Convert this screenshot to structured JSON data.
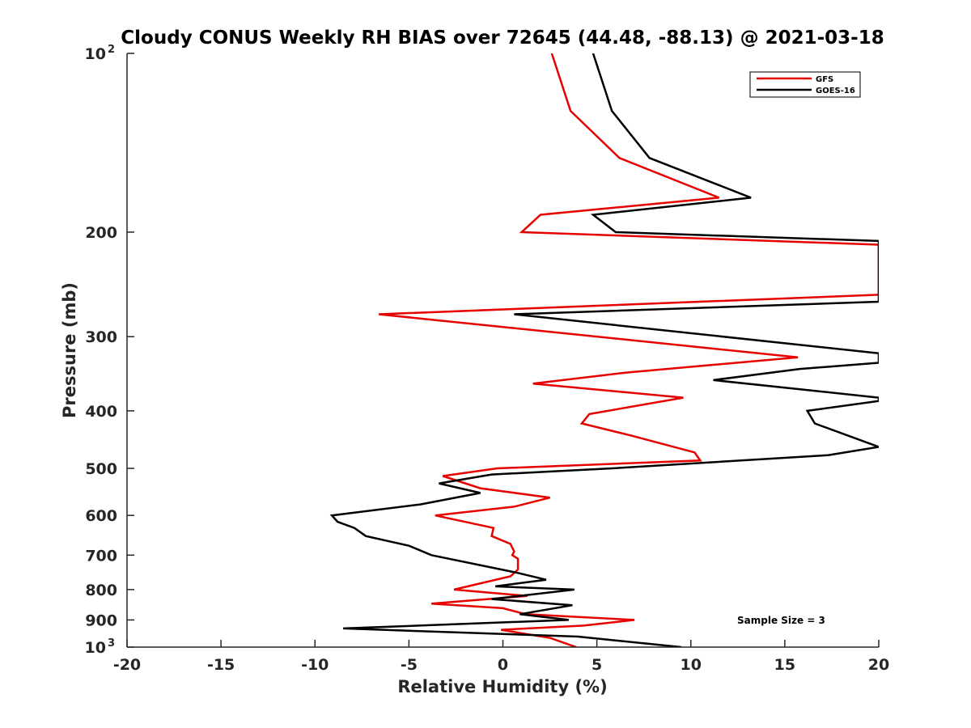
{
  "chart_data": {
    "type": "line",
    "title": "Cloudy CONUS Weekly RH BIAS over 72645 (44.48, -88.13) @ 2021-03-18",
    "xlabel": "Relative Humidity (%)",
    "ylabel": "Pressure (mb)",
    "xlim": [
      -20,
      20
    ],
    "ylim": [
      100,
      1000
    ],
    "y_scale": "log",
    "y_reversed": true,
    "x_ticks": [
      "-20",
      "-15",
      "-10",
      "-5",
      "0",
      "5",
      "10",
      "15",
      "20"
    ],
    "y_ticks": [
      {
        "value": 100,
        "label": "10",
        "exp": "2"
      },
      {
        "value": 200,
        "label": "200"
      },
      {
        "value": 300,
        "label": "300"
      },
      {
        "value": 400,
        "label": "400"
      },
      {
        "value": 500,
        "label": "500"
      },
      {
        "value": 600,
        "label": "600"
      },
      {
        "value": 700,
        "label": "700"
      },
      {
        "value": 800,
        "label": "800"
      },
      {
        "value": 900,
        "label": "900"
      },
      {
        "value": 1000,
        "label": "10",
        "exp": "3"
      }
    ],
    "legend_position": "top-right",
    "annotation": "Sample Size = 3",
    "series": [
      {
        "name": "GFS",
        "color": "#e60000",
        "points": [
          [
            2.6,
            100
          ],
          [
            3.6,
            125
          ],
          [
            6.2,
            150
          ],
          [
            11.5,
            175
          ],
          [
            2.0,
            187
          ],
          [
            1.0,
            200
          ],
          [
            20.0,
            210
          ],
          [
            20.0,
            255
          ],
          [
            -6.6,
            275
          ],
          [
            15.7,
            325
          ],
          [
            6.5,
            345
          ],
          [
            1.6,
            360
          ],
          [
            9.6,
            380
          ],
          [
            4.6,
            405
          ],
          [
            4.2,
            420
          ],
          [
            6.8,
            440
          ],
          [
            10.2,
            470
          ],
          [
            10.5,
            485
          ],
          [
            -0.3,
            500
          ],
          [
            -3.2,
            515
          ],
          [
            -1.2,
            540
          ],
          [
            2.5,
            560
          ],
          [
            0.6,
            580
          ],
          [
            -3.6,
            600
          ],
          [
            -0.5,
            630
          ],
          [
            -0.6,
            650
          ],
          [
            0.4,
            670
          ],
          [
            0.6,
            690
          ],
          [
            0.5,
            700
          ],
          [
            0.8,
            710
          ],
          [
            0.8,
            740
          ],
          [
            0.4,
            760
          ],
          [
            -2.6,
            800
          ],
          [
            1.3,
            820
          ],
          [
            -3.8,
            845
          ],
          [
            0.0,
            860
          ],
          [
            1.2,
            880
          ],
          [
            7.0,
            900
          ],
          [
            4.3,
            920
          ],
          [
            -0.1,
            935
          ],
          [
            2.5,
            965
          ],
          [
            3.9,
            1000
          ]
        ]
      },
      {
        "name": "GOES-16",
        "color": "#000000",
        "points": [
          [
            4.8,
            100
          ],
          [
            5.8,
            125
          ],
          [
            7.8,
            150
          ],
          [
            13.2,
            175
          ],
          [
            4.8,
            187
          ],
          [
            6.0,
            200
          ],
          [
            20.0,
            207
          ],
          [
            20.0,
            262
          ],
          [
            0.6,
            275
          ],
          [
            20.0,
            320
          ],
          [
            20.0,
            332
          ],
          [
            15.8,
            340
          ],
          [
            11.2,
            355
          ],
          [
            20.0,
            380
          ],
          [
            20.0,
            385
          ],
          [
            16.2,
            400
          ],
          [
            16.6,
            420
          ],
          [
            20.0,
            460
          ],
          [
            17.3,
            475
          ],
          [
            5.8,
            500
          ],
          [
            -0.6,
            512
          ],
          [
            -3.4,
            530
          ],
          [
            -1.2,
            550
          ],
          [
            -4.4,
            575
          ],
          [
            -9.1,
            600
          ],
          [
            -8.8,
            615
          ],
          [
            -7.9,
            630
          ],
          [
            -7.3,
            650
          ],
          [
            -5.0,
            675
          ],
          [
            -3.8,
            700
          ],
          [
            0.8,
            750
          ],
          [
            2.3,
            770
          ],
          [
            -0.4,
            790
          ],
          [
            3.8,
            800
          ],
          [
            -0.6,
            830
          ],
          [
            3.7,
            850
          ],
          [
            0.9,
            880
          ],
          [
            3.5,
            900
          ],
          [
            -8.5,
            930
          ],
          [
            4.0,
            960
          ],
          [
            9.5,
            1000
          ]
        ]
      }
    ]
  }
}
